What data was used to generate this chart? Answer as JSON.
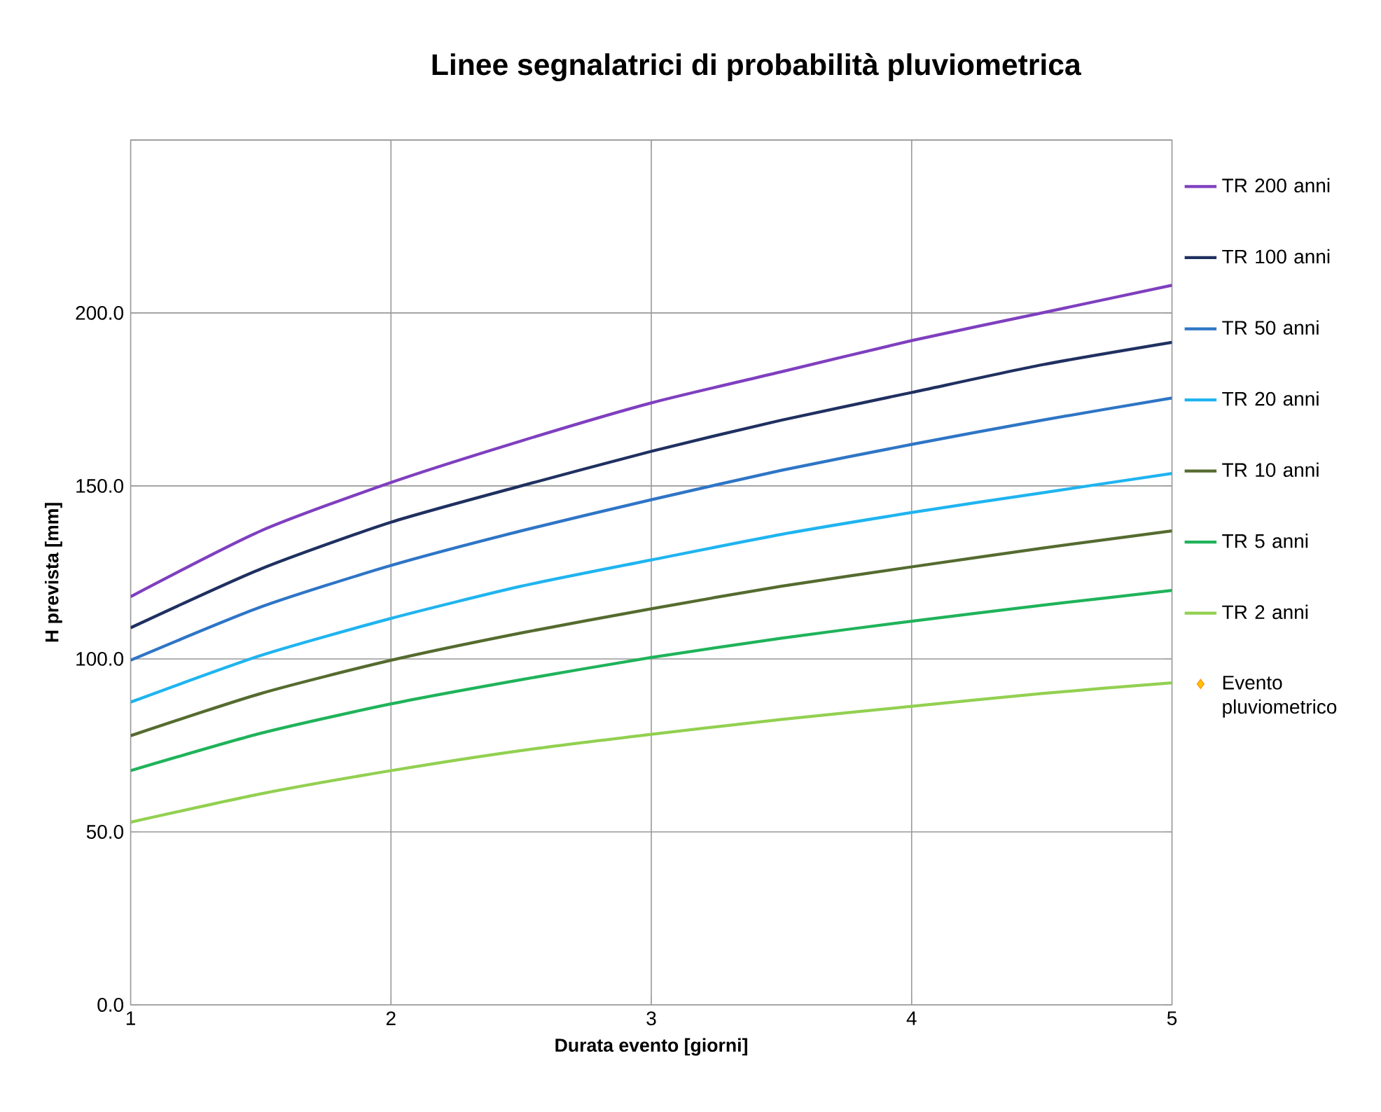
{
  "chart_data": {
    "type": "line",
    "title": "Linee segnalatrici di probabilità pluviometrica",
    "xlabel": "Durata evento [giorni]",
    "ylabel": "H prevista [mm]",
    "x": [
      1,
      1.5,
      2,
      2.5,
      3,
      3.5,
      4,
      4.5,
      5
    ],
    "xlim": [
      1,
      5
    ],
    "xticks": [
      1,
      2,
      3,
      4,
      5
    ],
    "ylim": [
      0,
      250
    ],
    "yticks": [
      {
        "value": 0,
        "label": "0.0"
      },
      {
        "value": 50,
        "label": "50.0"
      },
      {
        "value": 100,
        "label": "100.0"
      },
      {
        "value": 150,
        "label": "150.0"
      },
      {
        "value": 200,
        "label": "200.0"
      },
      {
        "value": 250,
        "label": null
      }
    ],
    "grid": true,
    "legend": "right",
    "line_style": "solid",
    "series": [
      {
        "name": "TR 200 anni",
        "color": "#7f3fbf",
        "values": [
          118,
          137,
          151,
          163,
          174,
          183,
          192,
          200,
          208
        ]
      },
      {
        "name": "TR 100 anni",
        "color": "#1f3060",
        "values": [
          109,
          126,
          139.5,
          150,
          160,
          169,
          177,
          185,
          191.5
        ]
      },
      {
        "name": "TR 50 anni",
        "color": "#2e75c6",
        "values": [
          99.6,
          115,
          127,
          137,
          146,
          154.5,
          162,
          169,
          175.4
        ]
      },
      {
        "name": "TR 20 anni",
        "color": "#1fb4f0",
        "values": [
          87.5,
          101,
          111.7,
          121,
          128.6,
          136,
          142.3,
          148,
          153.6
        ]
      },
      {
        "name": "TR 10 anni",
        "color": "#556b2f",
        "values": [
          77.8,
          90,
          99.6,
          107.5,
          114.5,
          121,
          126.6,
          132,
          137
        ]
      },
      {
        "name": "TR 5 anni",
        "color": "#1fb35a",
        "values": [
          67.7,
          78.5,
          87,
          94,
          100.4,
          106,
          110.9,
          115.5,
          119.8
        ]
      },
      {
        "name": "TR 2 anni",
        "color": "#92d050",
        "values": [
          52.8,
          61,
          67.7,
          73.5,
          78.2,
          82.5,
          86.3,
          90,
          93.1
        ]
      },
      {
        "name": "Evento pluviometrico",
        "type": "scatter",
        "marker": "diamond",
        "color": "#ffc000",
        "values": [
          null,
          null,
          null,
          null,
          null,
          null,
          null,
          null,
          null
        ]
      }
    ]
  }
}
